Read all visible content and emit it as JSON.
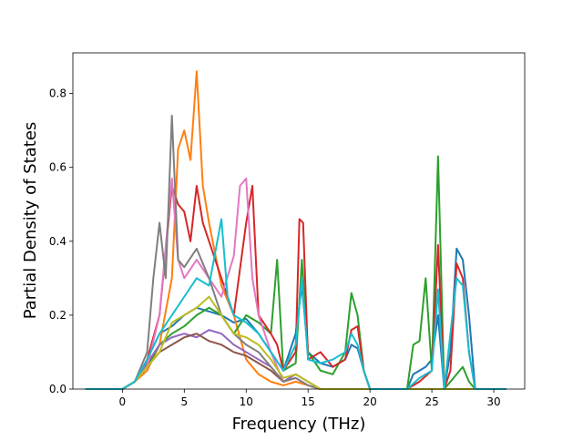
{
  "chart_data": {
    "type": "line",
    "title": "",
    "xlabel": "Frequency (THz)",
    "ylabel": "Partial Density of States",
    "xlim": [
      -4.0,
      32.5
    ],
    "ylim": [
      0.0,
      0.91
    ],
    "xticks": [
      0,
      5,
      10,
      15,
      20,
      25,
      30
    ],
    "yticks": [
      0.0,
      0.2,
      0.4,
      0.6,
      0.8
    ],
    "xtick_labels": [
      "0",
      "5",
      "10",
      "15",
      "20",
      "25",
      "30"
    ],
    "ytick_labels": [
      "0.0",
      "0.2",
      "0.4",
      "0.6",
      "0.8"
    ],
    "grid": false,
    "legend": "none",
    "series": [
      {
        "color": "#1f77b4",
        "points": [
          [
            -3,
            0
          ],
          [
            0,
            0
          ],
          [
            1,
            0.02
          ],
          [
            2,
            0.08
          ],
          [
            3,
            0.15
          ],
          [
            4,
            0.17
          ],
          [
            5,
            0.2
          ],
          [
            6,
            0.22
          ],
          [
            7,
            0.21
          ],
          [
            8,
            0.2
          ],
          [
            9,
            0.18
          ],
          [
            10,
            0.19
          ],
          [
            11,
            0.15
          ],
          [
            12,
            0.1
          ],
          [
            13,
            0.05
          ],
          [
            14,
            0.15
          ],
          [
            14.5,
            0.28
          ],
          [
            15,
            0.1
          ],
          [
            16,
            0.07
          ],
          [
            17,
            0.06
          ],
          [
            18,
            0.08
          ],
          [
            18.5,
            0.12
          ],
          [
            19,
            0.11
          ],
          [
            19.5,
            0.05
          ],
          [
            20,
            0
          ],
          [
            23,
            0
          ],
          [
            23.5,
            0.04
          ],
          [
            24,
            0.05
          ],
          [
            24.5,
            0.06
          ],
          [
            25,
            0.08
          ],
          [
            25.5,
            0.2
          ],
          [
            26,
            0
          ],
          [
            26.5,
            0.1
          ],
          [
            27,
            0.38
          ],
          [
            27.5,
            0.35
          ],
          [
            28,
            0.2
          ],
          [
            28.5,
            0
          ],
          [
            31,
            0
          ]
        ]
      },
      {
        "color": "#ff7f0e",
        "points": [
          [
            -3,
            0
          ],
          [
            0,
            0
          ],
          [
            1,
            0.02
          ],
          [
            2,
            0.05
          ],
          [
            3,
            0.12
          ],
          [
            4,
            0.3
          ],
          [
            4.5,
            0.65
          ],
          [
            5,
            0.7
          ],
          [
            5.5,
            0.62
          ],
          [
            6,
            0.86
          ],
          [
            6.5,
            0.55
          ],
          [
            7,
            0.45
          ],
          [
            8,
            0.28
          ],
          [
            9,
            0.2
          ],
          [
            10,
            0.08
          ],
          [
            11,
            0.04
          ],
          [
            12,
            0.02
          ],
          [
            13,
            0.01
          ],
          [
            14,
            0.02
          ],
          [
            15,
            0.01
          ],
          [
            16,
            0
          ],
          [
            31,
            0
          ]
        ]
      },
      {
        "color": "#2ca02c",
        "points": [
          [
            -3,
            0
          ],
          [
            0,
            0
          ],
          [
            1,
            0.02
          ],
          [
            2,
            0.06
          ],
          [
            3,
            0.12
          ],
          [
            4,
            0.15
          ],
          [
            5,
            0.17
          ],
          [
            6,
            0.2
          ],
          [
            7,
            0.22
          ],
          [
            8,
            0.2
          ],
          [
            9,
            0.15
          ],
          [
            10,
            0.2
          ],
          [
            11,
            0.18
          ],
          [
            12,
            0.15
          ],
          [
            12.5,
            0.35
          ],
          [
            13,
            0.05
          ],
          [
            14,
            0.07
          ],
          [
            14.5,
            0.35
          ],
          [
            15,
            0.1
          ],
          [
            16,
            0.05
          ],
          [
            17,
            0.04
          ],
          [
            18,
            0.1
          ],
          [
            18.5,
            0.26
          ],
          [
            19,
            0.2
          ],
          [
            19.5,
            0.05
          ],
          [
            20,
            0
          ],
          [
            23,
            0
          ],
          [
            23.5,
            0.12
          ],
          [
            24,
            0.13
          ],
          [
            24.5,
            0.3
          ],
          [
            25,
            0.05
          ],
          [
            25.5,
            0.63
          ],
          [
            26,
            0
          ],
          [
            27,
            0.04
          ],
          [
            27.5,
            0.06
          ],
          [
            28,
            0.02
          ],
          [
            28.5,
            0
          ],
          [
            31,
            0
          ]
        ]
      },
      {
        "color": "#d62728",
        "points": [
          [
            -3,
            0
          ],
          [
            0,
            0
          ],
          [
            1,
            0.02
          ],
          [
            2,
            0.08
          ],
          [
            3,
            0.2
          ],
          [
            4,
            0.55
          ],
          [
            4.5,
            0.5
          ],
          [
            5,
            0.48
          ],
          [
            5.5,
            0.4
          ],
          [
            6,
            0.55
          ],
          [
            6.5,
            0.45
          ],
          [
            7,
            0.4
          ],
          [
            8,
            0.3
          ],
          [
            9,
            0.2
          ],
          [
            10,
            0.45
          ],
          [
            10.5,
            0.55
          ],
          [
            11,
            0.2
          ],
          [
            12,
            0.15
          ],
          [
            12.5,
            0.12
          ],
          [
            13,
            0.05
          ],
          [
            14,
            0.1
          ],
          [
            14.3,
            0.46
          ],
          [
            14.6,
            0.45
          ],
          [
            15,
            0.08
          ],
          [
            16,
            0.1
          ],
          [
            17,
            0.06
          ],
          [
            18,
            0.08
          ],
          [
            18.5,
            0.16
          ],
          [
            19,
            0.17
          ],
          [
            19.5,
            0.05
          ],
          [
            20,
            0
          ],
          [
            23,
            0
          ],
          [
            24,
            0.02
          ],
          [
            25,
            0.05
          ],
          [
            25.5,
            0.39
          ],
          [
            26,
            0
          ],
          [
            26.5,
            0.05
          ],
          [
            27,
            0.34
          ],
          [
            27.5,
            0.3
          ],
          [
            28,
            0.1
          ],
          [
            28.5,
            0
          ],
          [
            31,
            0
          ]
        ]
      },
      {
        "color": "#9467bd",
        "points": [
          [
            -3,
            0
          ],
          [
            0,
            0
          ],
          [
            1,
            0.02
          ],
          [
            2,
            0.07
          ],
          [
            3,
            0.12
          ],
          [
            4,
            0.14
          ],
          [
            5,
            0.15
          ],
          [
            6,
            0.14
          ],
          [
            7,
            0.16
          ],
          [
            8,
            0.15
          ],
          [
            9,
            0.12
          ],
          [
            10,
            0.1
          ],
          [
            11,
            0.08
          ],
          [
            12,
            0.06
          ],
          [
            13,
            0.02
          ],
          [
            14,
            0.04
          ],
          [
            15,
            0.02
          ],
          [
            16,
            0
          ],
          [
            31,
            0
          ]
        ]
      },
      {
        "color": "#8c564b",
        "points": [
          [
            -3,
            0
          ],
          [
            0,
            0
          ],
          [
            1,
            0.02
          ],
          [
            2,
            0.06
          ],
          [
            3,
            0.1
          ],
          [
            4,
            0.12
          ],
          [
            5,
            0.14
          ],
          [
            6,
            0.15
          ],
          [
            7,
            0.13
          ],
          [
            8,
            0.12
          ],
          [
            9,
            0.1
          ],
          [
            10,
            0.09
          ],
          [
            11,
            0.07
          ],
          [
            12,
            0.05
          ],
          [
            13,
            0.02
          ],
          [
            14,
            0.03
          ],
          [
            15,
            0.01
          ],
          [
            16,
            0
          ],
          [
            31,
            0
          ]
        ]
      },
      {
        "color": "#e377c2",
        "points": [
          [
            -3,
            0
          ],
          [
            0,
            0
          ],
          [
            1,
            0.02
          ],
          [
            2,
            0.06
          ],
          [
            3,
            0.2
          ],
          [
            4,
            0.57
          ],
          [
            4.5,
            0.35
          ],
          [
            5,
            0.3
          ],
          [
            6,
            0.35
          ],
          [
            7,
            0.3
          ],
          [
            8,
            0.25
          ],
          [
            9,
            0.36
          ],
          [
            9.5,
            0.55
          ],
          [
            10,
            0.57
          ],
          [
            10.5,
            0.3
          ],
          [
            11,
            0.2
          ],
          [
            12,
            0.1
          ],
          [
            13,
            0.02
          ],
          [
            14,
            0.03
          ],
          [
            15,
            0.01
          ],
          [
            16,
            0
          ],
          [
            31,
            0
          ]
        ]
      },
      {
        "color": "#7f7f7f",
        "points": [
          [
            -3,
            0
          ],
          [
            0,
            0
          ],
          [
            1,
            0.02
          ],
          [
            2,
            0.1
          ],
          [
            2.5,
            0.3
          ],
          [
            3,
            0.45
          ],
          [
            3.5,
            0.3
          ],
          [
            4,
            0.74
          ],
          [
            4.5,
            0.35
          ],
          [
            5,
            0.33
          ],
          [
            6,
            0.38
          ],
          [
            7,
            0.3
          ],
          [
            8,
            0.2
          ],
          [
            9,
            0.15
          ],
          [
            10,
            0.12
          ],
          [
            11,
            0.1
          ],
          [
            12,
            0.06
          ],
          [
            13,
            0.02
          ],
          [
            14,
            0.03
          ],
          [
            15,
            0.01
          ],
          [
            16,
            0
          ],
          [
            31,
            0
          ]
        ]
      },
      {
        "color": "#bcbd22",
        "points": [
          [
            -3,
            0
          ],
          [
            0,
            0
          ],
          [
            1,
            0.02
          ],
          [
            2,
            0.06
          ],
          [
            3,
            0.1
          ],
          [
            4,
            0.18
          ],
          [
            5,
            0.2
          ],
          [
            6,
            0.22
          ],
          [
            7,
            0.25
          ],
          [
            8,
            0.2
          ],
          [
            9,
            0.15
          ],
          [
            10,
            0.14
          ],
          [
            11,
            0.12
          ],
          [
            12,
            0.08
          ],
          [
            13,
            0.03
          ],
          [
            14,
            0.04
          ],
          [
            15,
            0.02
          ],
          [
            16,
            0
          ],
          [
            31,
            0
          ]
        ]
      },
      {
        "color": "#17becf",
        "points": [
          [
            -3,
            0
          ],
          [
            0,
            0
          ],
          [
            1,
            0.02
          ],
          [
            2,
            0.08
          ],
          [
            3,
            0.15
          ],
          [
            4,
            0.2
          ],
          [
            5,
            0.25
          ],
          [
            6,
            0.3
          ],
          [
            7,
            0.28
          ],
          [
            8,
            0.46
          ],
          [
            8.5,
            0.25
          ],
          [
            9,
            0.2
          ],
          [
            10,
            0.18
          ],
          [
            11,
            0.15
          ],
          [
            12,
            0.1
          ],
          [
            13,
            0.05
          ],
          [
            14,
            0.12
          ],
          [
            14.5,
            0.3
          ],
          [
            15,
            0.08
          ],
          [
            16,
            0.07
          ],
          [
            17,
            0.08
          ],
          [
            18,
            0.1
          ],
          [
            18.5,
            0.15
          ],
          [
            19,
            0.12
          ],
          [
            19.5,
            0.05
          ],
          [
            20,
            0
          ],
          [
            23,
            0
          ],
          [
            24,
            0.03
          ],
          [
            25,
            0.05
          ],
          [
            25.5,
            0.27
          ],
          [
            26,
            0
          ],
          [
            27,
            0.3
          ],
          [
            27.5,
            0.28
          ],
          [
            28,
            0.1
          ],
          [
            28.5,
            0
          ],
          [
            31,
            0
          ]
        ]
      }
    ]
  }
}
